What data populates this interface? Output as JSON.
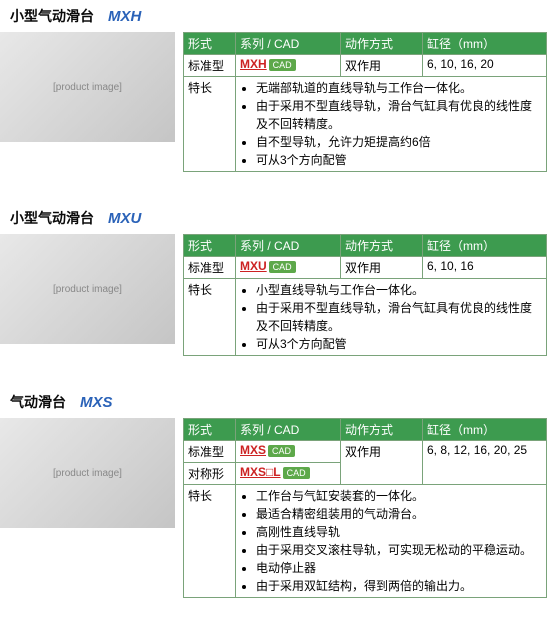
{
  "sections": [
    {
      "title_cn": "小型气动滑台",
      "title_model": "MXH",
      "img_label": "[product image]",
      "header": {
        "c1": "形式",
        "c2": "系列 / CAD",
        "c3": "动作方式",
        "c4": "缸径（mm）"
      },
      "rows": [
        {
          "c1": "标准型",
          "series": "MXH",
          "cad": "CAD",
          "c3": "双作用",
          "c4": "6, 10, 16, 20"
        }
      ],
      "feature_label": "特长",
      "features": [
        "无端部轨道的直线导轨与工作台一体化。",
        "由于采用不型直线导轨，滑台气缸具有优良的线性度及不回转精度。",
        "自不型导轨，允许力矩提高约6倍",
        "可从3个方向配管"
      ]
    },
    {
      "title_cn": "小型气动滑台",
      "title_model": "MXU",
      "img_label": "[product image]",
      "header": {
        "c1": "形式",
        "c2": "系列 / CAD",
        "c3": "动作方式",
        "c4": "缸径（mm）"
      },
      "rows": [
        {
          "c1": "标准型",
          "series": "MXU",
          "cad": "CAD",
          "c3": "双作用",
          "c4": "6, 10, 16"
        }
      ],
      "feature_label": "特长",
      "features": [
        "小型直线导轨与工作台一体化。",
        "由于采用不型直线导轨，滑台气缸具有优良的线性度及不回转精度。",
        "可从3个方向配管"
      ]
    },
    {
      "title_cn": "气动滑台",
      "title_model": "MXS",
      "img_label": "[product image]",
      "header": {
        "c1": "形式",
        "c2": "系列 / CAD",
        "c3": "动作方式",
        "c4": "缸径（mm）"
      },
      "rows": [
        {
          "c1": "标准型",
          "series": "MXS",
          "cad": "CAD",
          "c3": "双作用",
          "c4": "6, 8, 12, 16, 20, 25"
        },
        {
          "c1": "对称形",
          "series": "MXS□L",
          "cad": "CAD",
          "c3": "",
          "c4": ""
        }
      ],
      "feature_label": "特长",
      "features": [
        "工作台与气缸安装套的一体化。",
        "最适合精密组装用的气动滑台。",
        "高刚性直线导轨",
        "由于采用交叉滚柱导轨，可实现无松动的平稳运动。",
        "电动停止器",
        "由于采用双缸结构，得到两倍的输出力。"
      ]
    }
  ],
  "colors": {
    "header_bg": "#3d9b4f",
    "border": "#7aa37a",
    "series": "#c22",
    "model": "#2a62b8"
  }
}
